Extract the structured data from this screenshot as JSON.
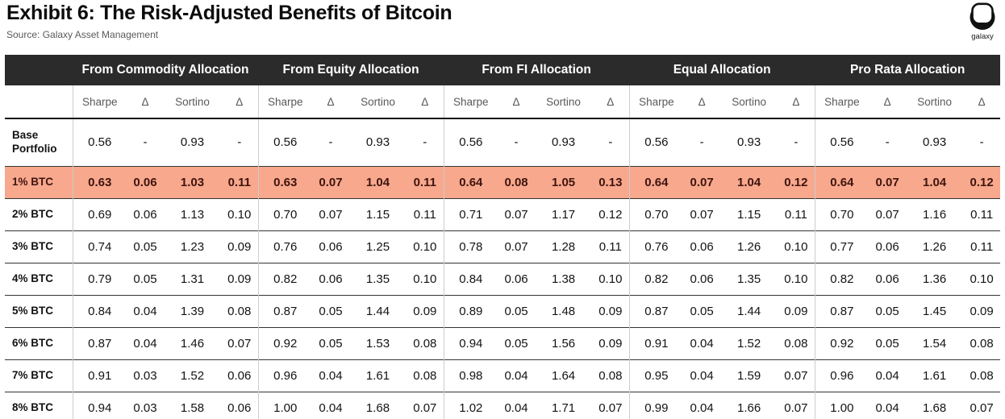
{
  "header": {
    "title": "Exhibit 6: The Risk-Adjusted Benefits of Bitcoin",
    "source": "Source: Galaxy Asset Management",
    "logo_text": "galaxy"
  },
  "colors": {
    "header_bg": "#2b2b2b",
    "header_text": "#ffffff",
    "subheader_text": "#595959",
    "body_text": "#131313",
    "highlight_bg": "#f7a88d",
    "highlight_text": "#3f140e"
  },
  "icons": {
    "logo": "galaxy-helmet-icon"
  },
  "chart_data": {
    "type": "table",
    "title": "Exhibit 6: The Risk-Adjusted Benefits of Bitcoin",
    "source": "Source: Galaxy Asset Management",
    "column_groups": [
      "From Commodity Allocation",
      "From Equity Allocation",
      "From FI Allocation",
      "Equal Allocation",
      "Pro Rata Allocation"
    ],
    "sub_columns": [
      "Sharpe",
      "Δ",
      "Sortino",
      "Δ"
    ],
    "rows": [
      {
        "label": "Base Portfolio",
        "highlight": false,
        "values": [
          [
            "0.56",
            "-",
            "0.93",
            "-"
          ],
          [
            "0.56",
            "-",
            "0.93",
            "-"
          ],
          [
            "0.56",
            "-",
            "0.93",
            "-"
          ],
          [
            "0.56",
            "-",
            "0.93",
            "-"
          ],
          [
            "0.56",
            "-",
            "0.93",
            "-"
          ]
        ]
      },
      {
        "label": "1% BTC",
        "highlight": true,
        "values": [
          [
            "0.63",
            "0.06",
            "1.03",
            "0.11"
          ],
          [
            "0.63",
            "0.07",
            "1.04",
            "0.11"
          ],
          [
            "0.64",
            "0.08",
            "1.05",
            "0.13"
          ],
          [
            "0.64",
            "0.07",
            "1.04",
            "0.12"
          ],
          [
            "0.64",
            "0.07",
            "1.04",
            "0.12"
          ]
        ]
      },
      {
        "label": "2% BTC",
        "highlight": false,
        "values": [
          [
            "0.69",
            "0.06",
            "1.13",
            "0.10"
          ],
          [
            "0.70",
            "0.07",
            "1.15",
            "0.11"
          ],
          [
            "0.71",
            "0.07",
            "1.17",
            "0.12"
          ],
          [
            "0.70",
            "0.07",
            "1.15",
            "0.11"
          ],
          [
            "0.70",
            "0.07",
            "1.16",
            "0.11"
          ]
        ]
      },
      {
        "label": "3% BTC",
        "highlight": false,
        "values": [
          [
            "0.74",
            "0.05",
            "1.23",
            "0.09"
          ],
          [
            "0.76",
            "0.06",
            "1.25",
            "0.10"
          ],
          [
            "0.78",
            "0.07",
            "1.28",
            "0.11"
          ],
          [
            "0.76",
            "0.06",
            "1.26",
            "0.10"
          ],
          [
            "0.77",
            "0.06",
            "1.26",
            "0.11"
          ]
        ]
      },
      {
        "label": "4% BTC",
        "highlight": false,
        "values": [
          [
            "0.79",
            "0.05",
            "1.31",
            "0.09"
          ],
          [
            "0.82",
            "0.06",
            "1.35",
            "0.10"
          ],
          [
            "0.84",
            "0.06",
            "1.38",
            "0.10"
          ],
          [
            "0.82",
            "0.06",
            "1.35",
            "0.10"
          ],
          [
            "0.82",
            "0.06",
            "1.36",
            "0.10"
          ]
        ]
      },
      {
        "label": "5% BTC",
        "highlight": false,
        "values": [
          [
            "0.84",
            "0.04",
            "1.39",
            "0.08"
          ],
          [
            "0.87",
            "0.05",
            "1.44",
            "0.09"
          ],
          [
            "0.89",
            "0.05",
            "1.48",
            "0.09"
          ],
          [
            "0.87",
            "0.05",
            "1.44",
            "0.09"
          ],
          [
            "0.87",
            "0.05",
            "1.45",
            "0.09"
          ]
        ]
      },
      {
        "label": "6% BTC",
        "highlight": false,
        "values": [
          [
            "0.87",
            "0.04",
            "1.46",
            "0.07"
          ],
          [
            "0.92",
            "0.05",
            "1.53",
            "0.08"
          ],
          [
            "0.94",
            "0.05",
            "1.56",
            "0.09"
          ],
          [
            "0.91",
            "0.04",
            "1.52",
            "0.08"
          ],
          [
            "0.92",
            "0.05",
            "1.54",
            "0.08"
          ]
        ]
      },
      {
        "label": "7% BTC",
        "highlight": false,
        "values": [
          [
            "0.91",
            "0.03",
            "1.52",
            "0.06"
          ],
          [
            "0.96",
            "0.04",
            "1.61",
            "0.08"
          ],
          [
            "0.98",
            "0.04",
            "1.64",
            "0.08"
          ],
          [
            "0.95",
            "0.04",
            "1.59",
            "0.07"
          ],
          [
            "0.96",
            "0.04",
            "1.61",
            "0.08"
          ]
        ]
      },
      {
        "label": "8% BTC",
        "highlight": false,
        "values": [
          [
            "0.94",
            "0.03",
            "1.58",
            "0.06"
          ],
          [
            "1.00",
            "0.04",
            "1.68",
            "0.07"
          ],
          [
            "1.02",
            "0.04",
            "1.71",
            "0.07"
          ],
          [
            "0.99",
            "0.04",
            "1.66",
            "0.07"
          ],
          [
            "1.00",
            "0.04",
            "1.68",
            "0.07"
          ]
        ]
      }
    ]
  }
}
